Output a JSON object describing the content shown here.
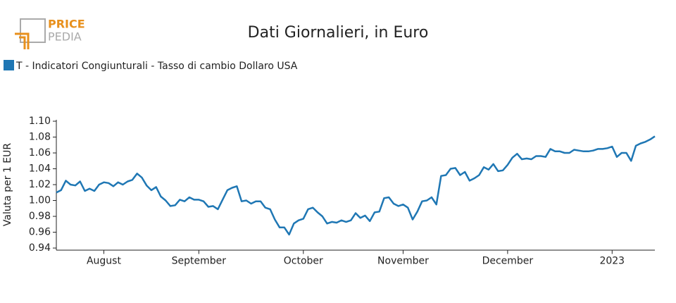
{
  "logo": [
    "PRICE",
    "PEDIA"
  ],
  "chart_data": {
    "type": "line",
    "title": "Dati Giornalieri, in Euro",
    "ylabel": "Valuta per 1 EUR",
    "categories": [
      null,
      null,
      null,
      null,
      null,
      null,
      null,
      null,
      null,
      null,
      "August",
      null,
      null,
      null,
      null,
      null,
      null,
      null,
      null,
      null,
      null,
      null,
      null,
      null,
      null,
      null,
      null,
      null,
      null,
      null,
      "September",
      null,
      null,
      null,
      null,
      null,
      null,
      null,
      null,
      null,
      null,
      null,
      null,
      null,
      null,
      null,
      null,
      null,
      null,
      null,
      null,
      null,
      "October",
      null,
      null,
      null,
      null,
      null,
      null,
      null,
      null,
      null,
      null,
      null,
      null,
      null,
      null,
      null,
      null,
      null,
      null,
      null,
      null,
      "November",
      null,
      null,
      null,
      null,
      null,
      null,
      null,
      null,
      null,
      null,
      null,
      null,
      null,
      null,
      null,
      null,
      null,
      null,
      null,
      null,
      null,
      "December",
      null,
      null,
      null,
      null,
      null,
      null,
      null,
      null,
      null,
      null,
      null,
      null,
      null,
      null,
      null,
      null,
      null,
      null,
      null,
      null,
      null,
      "2023",
      null,
      null,
      null,
      null,
      null,
      null,
      null,
      null,
      null
    ],
    "series": [
      {
        "name": "T - Indicatori Congiunturali - Tasso di cambio Dollaro USA",
        "color": "#1f77b4",
        "values": [
          1.01,
          1.013,
          1.025,
          1.02,
          1.019,
          1.024,
          1.012,
          1.015,
          1.012,
          1.02,
          1.023,
          1.022,
          1.018,
          1.023,
          1.02,
          1.024,
          1.026,
          1.034,
          1.029,
          1.019,
          1.013,
          1.017,
          1.005,
          1.0,
          0.993,
          0.994,
          1.001,
          0.999,
          1.004,
          1.001,
          1.001,
          0.999,
          0.992,
          0.993,
          0.989,
          1.001,
          1.013,
          1.016,
          1.018,
          0.999,
          1.0,
          0.996,
          0.999,
          0.999,
          0.991,
          0.989,
          0.976,
          0.966,
          0.966,
          0.957,
          0.971,
          0.975,
          0.977,
          0.989,
          0.991,
          0.985,
          0.98,
          0.971,
          0.973,
          0.972,
          0.975,
          0.973,
          0.975,
          0.984,
          0.978,
          0.981,
          0.974,
          0.985,
          0.986,
          1.003,
          1.004,
          0.996,
          0.993,
          0.995,
          0.991,
          0.976,
          0.986,
          0.999,
          1.0,
          1.004,
          0.995,
          1.031,
          1.032,
          1.04,
          1.041,
          1.032,
          1.036,
          1.025,
          1.028,
          1.032,
          1.042,
          1.039,
          1.046,
          1.037,
          1.038,
          1.045,
          1.054,
          1.059,
          1.052,
          1.053,
          1.052,
          1.056,
          1.056,
          1.055,
          1.065,
          1.062,
          1.062,
          1.06,
          1.06,
          1.064,
          1.063,
          1.062,
          1.062,
          1.063,
          1.065,
          1.065,
          1.066,
          1.068,
          1.055,
          1.06,
          1.06,
          1.05,
          1.069,
          1.072,
          1.074,
          1.077,
          1.081
        ]
      }
    ],
    "ylim": [
      0.937,
      1.101
    ],
    "yticks": [
      0.94,
      0.96,
      0.98,
      {
        "value": 1.0,
        "label": "1.00"
      },
      1.02,
      1.04,
      1.06,
      1.08,
      {
        "value": 1.1,
        "label": "1.10"
      }
    ]
  }
}
